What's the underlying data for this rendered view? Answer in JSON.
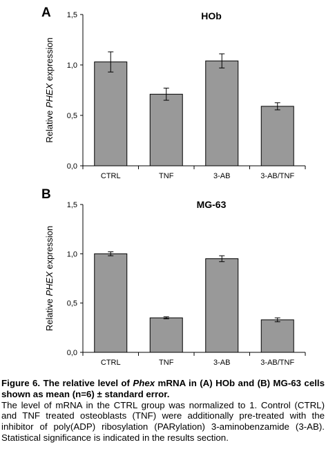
{
  "chart_data": [
    {
      "type": "bar",
      "panel_label": "A",
      "title": "HOb",
      "ylabel": "Relative PHEX expression",
      "ylabel_parts": [
        "Relative ",
        "PHEX",
        " expression"
      ],
      "categories": [
        "CTRL",
        "TNF",
        "3-AB",
        "3-AB/TNF"
      ],
      "values": [
        1.03,
        0.71,
        1.04,
        0.59
      ],
      "errors": [
        0.1,
        0.06,
        0.07,
        0.035
      ],
      "ylim": [
        0,
        1.5
      ],
      "yticks": [
        "0,0",
        "0,5",
        "1,0",
        "1,5"
      ],
      "grid": false,
      "bar_color": "#999999"
    },
    {
      "type": "bar",
      "panel_label": "B",
      "title": "MG-63",
      "ylabel": "Relative PHEX expression",
      "ylabel_parts": [
        "Relative ",
        "PHEX",
        " expression"
      ],
      "categories": [
        "CTRL",
        "TNF",
        "3-AB",
        "3-AB/TNF"
      ],
      "values": [
        1.0,
        0.35,
        0.95,
        0.33
      ],
      "errors": [
        0.02,
        0.01,
        0.03,
        0.02
      ],
      "ylim": [
        0,
        1.5
      ],
      "yticks": [
        "0,0",
        "0,5",
        "1,0",
        "1,5"
      ],
      "grid": false,
      "bar_color": "#999999"
    }
  ],
  "caption": {
    "line1_prefix": "Figure 6. The relative level of ",
    "line1_italic": "Phex",
    "line1_suffix": " mRNA in (A) HOb and (B) MG-63 cells shown as mean (n=6) ± standard error.",
    "body": "The level of mRNA in the CTRL group was normalized to 1. Control (CTRL) and TNF treated osteoblasts (TNF) were additionally pre-treated with the inhibitor of poly(ADP) ribosylation (PARylation) 3-aminobenzamide (3-AB). Statistical significance is indicated in the results section."
  }
}
